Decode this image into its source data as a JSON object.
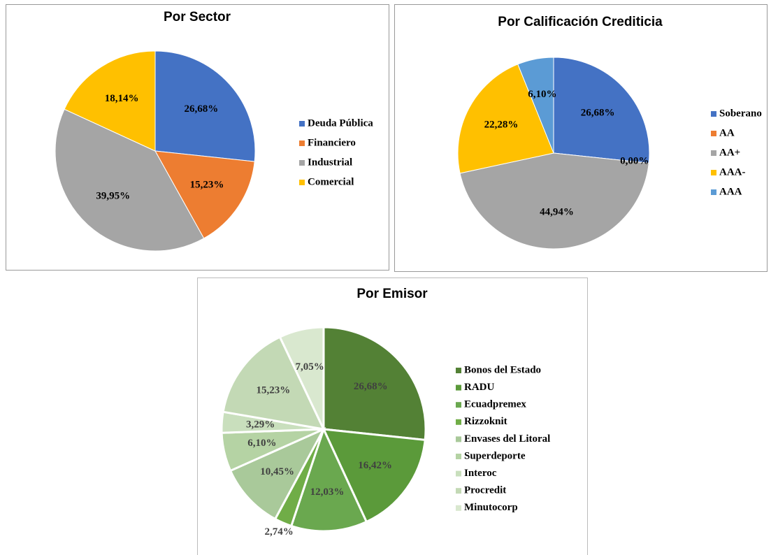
{
  "chart_data": [
    {
      "type": "pie",
      "title": "Por Sector",
      "categories": [
        "Deuda Pública",
        "Financiero",
        "Industrial",
        "Comercial"
      ],
      "values": [
        26.68,
        15.23,
        39.95,
        18.14
      ],
      "value_labels": [
        "26,68%",
        "15,23%",
        "39,95%",
        "18,14%"
      ],
      "colors": [
        "#4472c4",
        "#ed7d31",
        "#a5a5a5",
        "#ffc000"
      ]
    },
    {
      "type": "pie",
      "title": "Por Calificación Crediticia",
      "categories": [
        "Soberano",
        "AA",
        "AA+",
        "AAA-",
        "AAA"
      ],
      "values": [
        26.68,
        0.0,
        44.94,
        22.28,
        6.1
      ],
      "value_labels": [
        "26,68%",
        "0,00%",
        "44,94%",
        "22,28%",
        "6,10%"
      ],
      "colors": [
        "#4472c4",
        "#ed7d31",
        "#a5a5a5",
        "#ffc000",
        "#5b9bd5"
      ]
    },
    {
      "type": "pie",
      "title": "Por Emisor",
      "categories": [
        "Bonos del Estado",
        "RADU",
        "Ecuadpremex",
        "Rizzoknit",
        "Envases del Litoral",
        "Superdeporte",
        "Interoc",
        "Procredit",
        "Minutocorp"
      ],
      "values": [
        26.68,
        16.42,
        12.03,
        2.74,
        10.45,
        6.1,
        3.29,
        15.23,
        7.05
      ],
      "value_labels": [
        "26,68%",
        "16,42%",
        "12,03%",
        "2,74%",
        "10,45%",
        "6,10%",
        "3,29%",
        "15,23%",
        "7,05%"
      ],
      "colors": [
        "#538135",
        "#5b9a3a",
        "#6aa84f",
        "#70ad47",
        "#a9c99a",
        "#b5d3a4",
        "#c9dfbd",
        "#c3d9b5",
        "#d9e8cf"
      ]
    }
  ]
}
